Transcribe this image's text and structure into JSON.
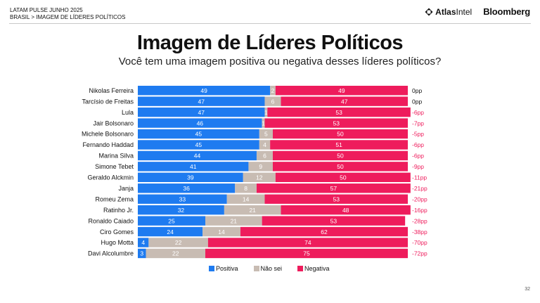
{
  "header": {
    "line1": "LATAM PULSE JUNHO 2025",
    "line2": "BRASIL > IMAGEM DE LÍDERES POLÍTICOS",
    "logo_atlas_bold": "Atlas",
    "logo_atlas_light": "Intel",
    "logo_bloomberg": "Bloomberg"
  },
  "page_number": "32",
  "colors": {
    "positiva": "#1E7BF0",
    "nao_sei": "#C8BCB3",
    "negativa": "#EE1C5C",
    "net_negative": "#EE1C5C",
    "net_zero": "#111111"
  },
  "chart_data": {
    "type": "bar",
    "orientation": "horizontal-stacked-100",
    "title": "Imagem de Líderes Políticos",
    "subtitle": "Você tem uma imagem positiva ou negativa desses líderes políticos?",
    "categories": [
      "Nikolas Ferreira",
      "Tarcísio de Freitas",
      "Lula",
      "Jair Bolsonaro",
      "Michele Bolsonaro",
      "Fernando Haddad",
      "Marina Silva",
      "Simone Tebet",
      "Geraldo Alckmin",
      "Janja",
      "Romeu Zema",
      "Ratinho Jr.",
      "Ronaldo Caiado",
      "Ciro Gomes",
      "Hugo Motta",
      "Davi Alcolumbre"
    ],
    "series": [
      {
        "name": "Positiva",
        "values": [
          49,
          47,
          47,
          46,
          45,
          45,
          44,
          41,
          39,
          36,
          33,
          32,
          25,
          24,
          4,
          3
        ]
      },
      {
        "name": "Não sei",
        "values": [
          2,
          6,
          1,
          1,
          5,
          4,
          6,
          9,
          12,
          8,
          14,
          21,
          21,
          14,
          22,
          22
        ]
      },
      {
        "name": "Negativa",
        "values": [
          49,
          47,
          53,
          53,
          50,
          51,
          50,
          50,
          50,
          57,
          53,
          48,
          53,
          62,
          74,
          75
        ]
      }
    ],
    "net_labels": [
      "0pp",
      "0pp",
      "-6pp",
      "-7pp",
      "-5pp",
      "-6pp",
      "-6pp",
      "-9pp",
      "-11pp",
      "-21pp",
      "-20pp",
      "-16pp",
      "-28pp",
      "-38pp",
      "-70pp",
      "-72pp"
    ],
    "xlim": [
      0,
      100
    ],
    "legend": [
      "Positiva",
      "Não sei",
      "Negativa"
    ],
    "legend_position": "bottom"
  }
}
